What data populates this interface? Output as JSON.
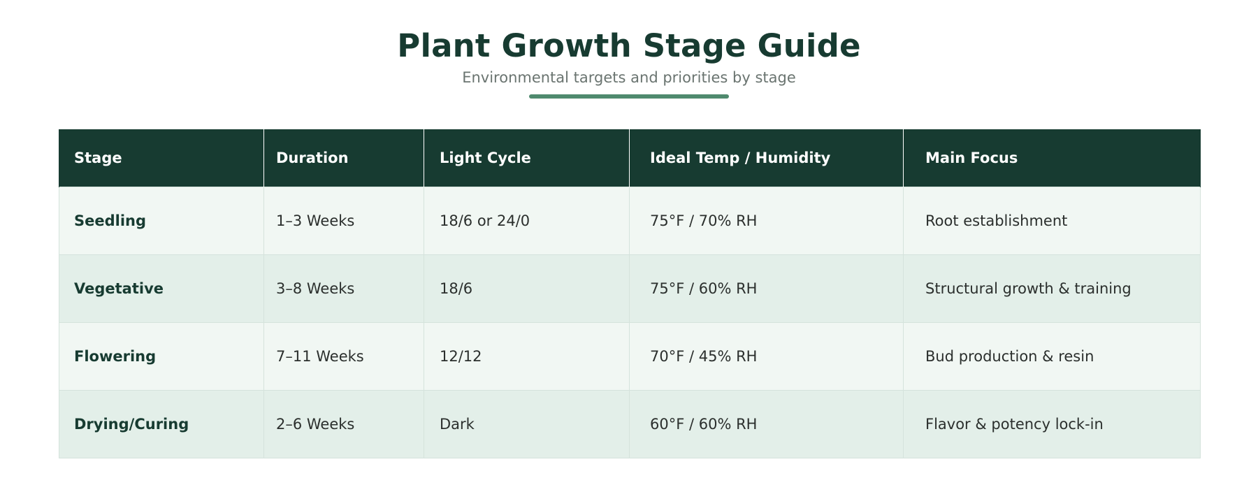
{
  "header": {
    "title": "Plant Growth Stage Guide",
    "subtitle": "Environmental targets and priorities by stage"
  },
  "colors": {
    "header_bg": "#173b31",
    "accent": "#4f8a6e",
    "row_light": "#f1f7f3",
    "row_dark": "#e3efe9"
  },
  "table": {
    "columns": [
      "Stage",
      "Duration",
      "Light Cycle",
      "Ideal Temp / Humidity",
      "Main Focus"
    ],
    "rows": [
      {
        "stage": "Seedling",
        "duration": "1–3 Weeks",
        "light": "18/6 or 24/0",
        "temp": "75°F / 70% RH",
        "focus": "Root establishment"
      },
      {
        "stage": "Vegetative",
        "duration": "3–8 Weeks",
        "light": "18/6",
        "temp": "75°F / 60% RH",
        "focus": "Structural growth & training"
      },
      {
        "stage": "Flowering",
        "duration": "7–11 Weeks",
        "light": "12/12",
        "temp": "70°F / 45% RH",
        "focus": "Bud production & resin"
      },
      {
        "stage": "Drying/Curing",
        "duration": "2–6 Weeks",
        "light": "Dark",
        "temp": "60°F / 60% RH",
        "focus": "Flavor & potency lock-in"
      }
    ]
  }
}
